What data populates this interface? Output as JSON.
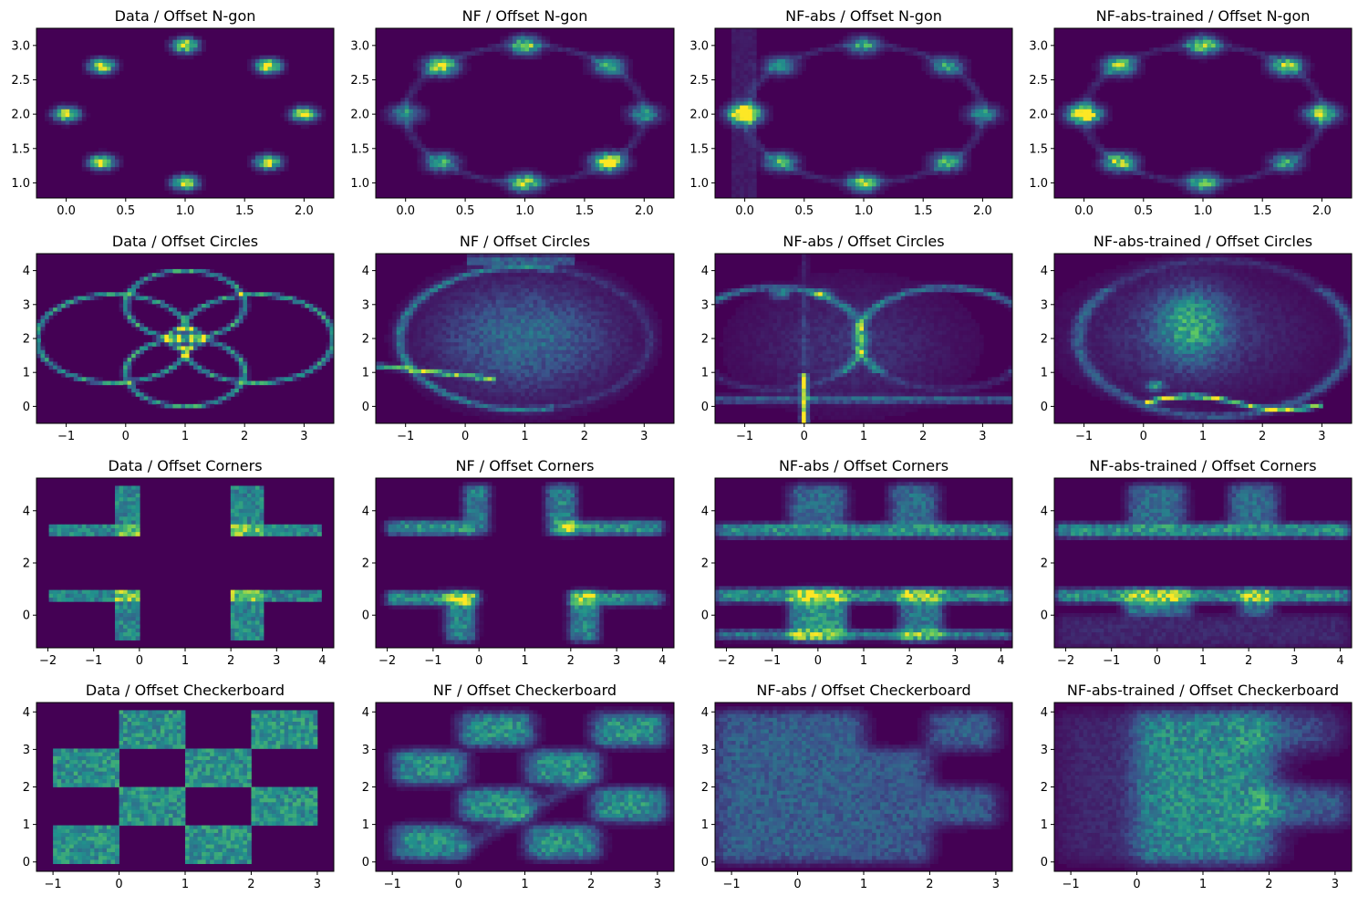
{
  "colors": {
    "background": "#440154",
    "colormap": [
      "#440154",
      "#3b528b",
      "#21918c",
      "#5ec962",
      "#fde725"
    ]
  },
  "chart_data": [
    {
      "type": "heatmap",
      "title": "Data / Offset N-gon",
      "x_ticks": [
        "0.0",
        "0.5",
        "1.0",
        "1.5",
        "2.0"
      ],
      "y_ticks": [
        "1.0",
        "1.5",
        "2.0",
        "2.5",
        "3.0"
      ],
      "xlim": [
        -0.25,
        2.25
      ],
      "ylim": [
        0.78,
        3.25
      ],
      "dataset": "ngon",
      "model": "data"
    },
    {
      "type": "heatmap",
      "title": "NF / Offset N-gon",
      "x_ticks": [
        "0.0",
        "0.5",
        "1.0",
        "1.5",
        "2.0"
      ],
      "y_ticks": [
        "1.0",
        "1.5",
        "2.0",
        "2.5",
        "3.0"
      ],
      "xlim": [
        -0.25,
        2.25
      ],
      "ylim": [
        0.78,
        3.25
      ],
      "dataset": "ngon",
      "model": "nf"
    },
    {
      "type": "heatmap",
      "title": "NF-abs / Offset N-gon",
      "x_ticks": [
        "0.0",
        "0.5",
        "1.0",
        "1.5",
        "2.0"
      ],
      "y_ticks": [
        "1.0",
        "1.5",
        "2.0",
        "2.5",
        "3.0"
      ],
      "xlim": [
        -0.25,
        2.25
      ],
      "ylim": [
        0.78,
        3.25
      ],
      "dataset": "ngon",
      "model": "abs"
    },
    {
      "type": "heatmap",
      "title": "NF-abs-trained / Offset N-gon",
      "x_ticks": [
        "0.0",
        "0.5",
        "1.0",
        "1.5",
        "2.0"
      ],
      "y_ticks": [
        "1.0",
        "1.5",
        "2.0",
        "2.5",
        "3.0"
      ],
      "xlim": [
        -0.25,
        2.25
      ],
      "ylim": [
        0.78,
        3.25
      ],
      "dataset": "ngon",
      "model": "abst"
    },
    {
      "type": "heatmap",
      "title": "Data / Offset Circles",
      "x_ticks": [
        "−1",
        "0",
        "1",
        "2",
        "3"
      ],
      "y_ticks": [
        "0",
        "1",
        "2",
        "3",
        "4"
      ],
      "xlim": [
        -1.5,
        3.5
      ],
      "ylim": [
        -0.5,
        4.5
      ],
      "dataset": "circles",
      "model": "data"
    },
    {
      "type": "heatmap",
      "title": "NF / Offset Circles",
      "x_ticks": [
        "−1",
        "0",
        "1",
        "2",
        "3"
      ],
      "y_ticks": [
        "0",
        "1",
        "2",
        "3",
        "4"
      ],
      "xlim": [
        -1.5,
        3.5
      ],
      "ylim": [
        -0.5,
        4.5
      ],
      "dataset": "circles",
      "model": "nf"
    },
    {
      "type": "heatmap",
      "title": "NF-abs / Offset Circles",
      "x_ticks": [
        "−1",
        "0",
        "1",
        "2",
        "3"
      ],
      "y_ticks": [
        "0",
        "1",
        "2",
        "3",
        "4"
      ],
      "xlim": [
        -1.5,
        3.5
      ],
      "ylim": [
        -0.5,
        4.5
      ],
      "dataset": "circles",
      "model": "abs"
    },
    {
      "type": "heatmap",
      "title": "NF-abs-trained / Offset Circles",
      "x_ticks": [
        "−1",
        "0",
        "1",
        "2",
        "3"
      ],
      "y_ticks": [
        "0",
        "1",
        "2",
        "3",
        "4"
      ],
      "xlim": [
        -1.5,
        3.5
      ],
      "ylim": [
        -0.5,
        4.5
      ],
      "dataset": "circles",
      "model": "abst"
    },
    {
      "type": "heatmap",
      "title": "Data / Offset Corners",
      "x_ticks": [
        "−2",
        "−1",
        "0",
        "1",
        "2",
        "3",
        "4"
      ],
      "y_ticks": [
        "0",
        "2",
        "4"
      ],
      "xlim": [
        -2.25,
        4.25
      ],
      "ylim": [
        -1.25,
        5.25
      ],
      "dataset": "corners",
      "model": "data"
    },
    {
      "type": "heatmap",
      "title": "NF / Offset Corners",
      "x_ticks": [
        "−2",
        "−1",
        "0",
        "1",
        "2",
        "3",
        "4"
      ],
      "y_ticks": [
        "0",
        "2",
        "4"
      ],
      "xlim": [
        -2.25,
        4.25
      ],
      "ylim": [
        -1.25,
        5.25
      ],
      "dataset": "corners",
      "model": "nf"
    },
    {
      "type": "heatmap",
      "title": "NF-abs / Offset Corners",
      "x_ticks": [
        "−2",
        "−1",
        "0",
        "1",
        "2",
        "3",
        "4"
      ],
      "y_ticks": [
        "0",
        "2",
        "4"
      ],
      "xlim": [
        -2.25,
        4.25
      ],
      "ylim": [
        -1.25,
        5.25
      ],
      "dataset": "corners",
      "model": "abs"
    },
    {
      "type": "heatmap",
      "title": "NF-abs-trained / Offset Corners",
      "x_ticks": [
        "−2",
        "−1",
        "0",
        "1",
        "2",
        "3",
        "4"
      ],
      "y_ticks": [
        "0",
        "2",
        "4"
      ],
      "xlim": [
        -2.25,
        4.25
      ],
      "ylim": [
        -1.25,
        5.25
      ],
      "dataset": "corners",
      "model": "abst"
    },
    {
      "type": "heatmap",
      "title": "Data / Offset Checkerboard",
      "x_ticks": [
        "−1",
        "0",
        "1",
        "2",
        "3"
      ],
      "y_ticks": [
        "0",
        "1",
        "2",
        "3",
        "4"
      ],
      "xlim": [
        -1.25,
        3.25
      ],
      "ylim": [
        -0.25,
        4.25
      ],
      "dataset": "checker",
      "model": "data"
    },
    {
      "type": "heatmap",
      "title": "NF / Offset Checkerboard",
      "x_ticks": [
        "−1",
        "0",
        "1",
        "2",
        "3"
      ],
      "y_ticks": [
        "0",
        "1",
        "2",
        "3",
        "4"
      ],
      "xlim": [
        -1.25,
        3.25
      ],
      "ylim": [
        -0.25,
        4.25
      ],
      "dataset": "checker",
      "model": "nf"
    },
    {
      "type": "heatmap",
      "title": "NF-abs / Offset Checkerboard",
      "x_ticks": [
        "−1",
        "0",
        "1",
        "2",
        "3"
      ],
      "y_ticks": [
        "0",
        "1",
        "2",
        "3",
        "4"
      ],
      "xlim": [
        -1.25,
        3.25
      ],
      "ylim": [
        -0.25,
        4.25
      ],
      "dataset": "checker",
      "model": "abs"
    },
    {
      "type": "heatmap",
      "title": "NF-abs-trained / Offset Checkerboard",
      "x_ticks": [
        "−1",
        "0",
        "1",
        "2",
        "3"
      ],
      "y_ticks": [
        "0",
        "1",
        "2",
        "3",
        "4"
      ],
      "xlim": [
        -1.25,
        3.25
      ],
      "ylim": [
        -0.25,
        4.25
      ],
      "dataset": "checker",
      "model": "abst"
    }
  ]
}
